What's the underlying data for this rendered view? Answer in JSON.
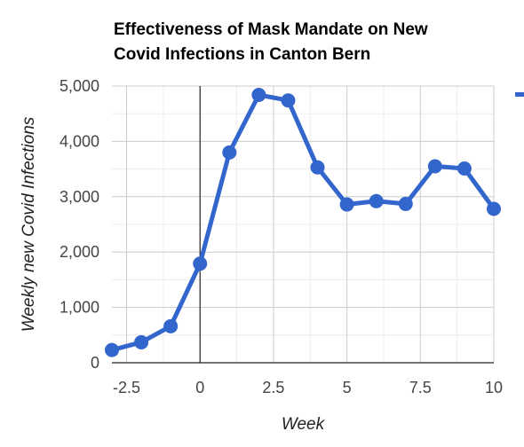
{
  "chart_data": {
    "type": "line",
    "title_lines": [
      "Effectiveness of Mask Mandate on New",
      "Covid Infections in Canton Bern"
    ],
    "xlabel": "Week",
    "ylabel": "Weekly new Covid Infections",
    "xlim": [
      -3,
      10
    ],
    "ylim": [
      0,
      5000
    ],
    "x_ticks": [
      -2.5,
      0,
      2.5,
      5,
      7.5,
      10
    ],
    "x_tick_labels": [
      "-2.5",
      "0",
      "2.5",
      "5",
      "7.5",
      "10"
    ],
    "y_ticks": [
      0,
      1000,
      2000,
      3000,
      4000,
      5000
    ],
    "y_tick_labels": [
      "0",
      "1,000",
      "2,000",
      "3,000",
      "4,000",
      "5,000"
    ],
    "grid": true,
    "color": "#3366cc",
    "series": [
      {
        "x": [
          -3,
          -2,
          -1,
          0,
          1,
          2,
          3,
          4,
          5,
          6,
          7,
          8,
          9,
          10
        ],
        "values": [
          230,
          370,
          660,
          1790,
          3800,
          4840,
          4740,
          3530,
          2860,
          2920,
          2870,
          3550,
          3510,
          2780
        ]
      }
    ]
  }
}
